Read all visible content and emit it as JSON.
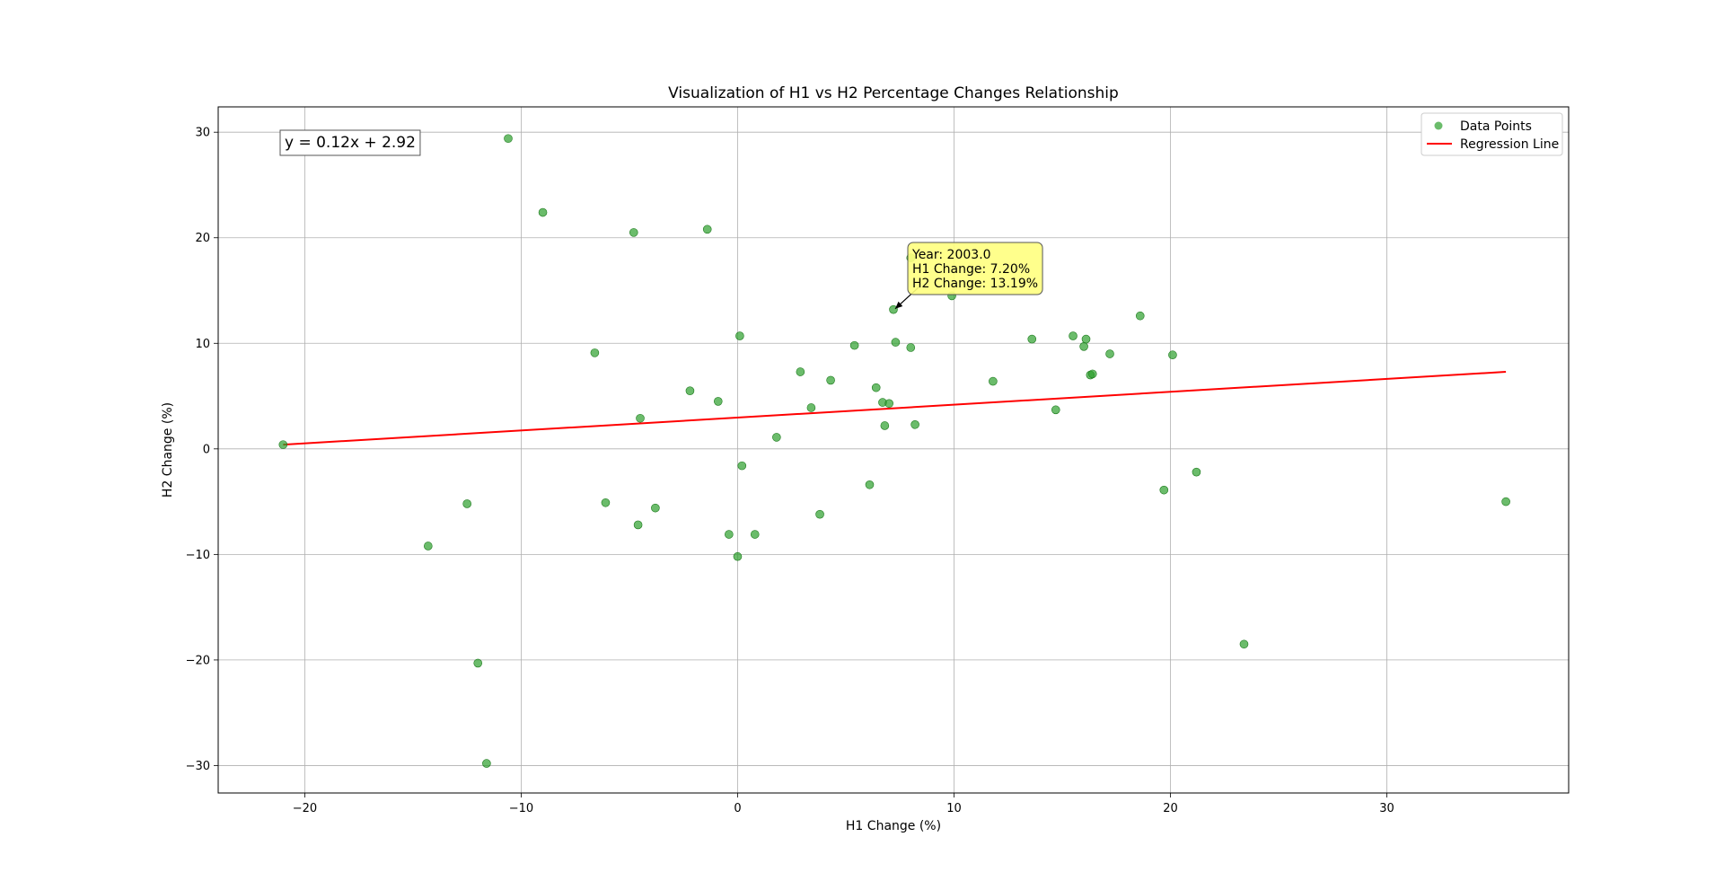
{
  "chart_data": {
    "type": "scatter",
    "title": "Visualization of H1 vs H2 Percentage Changes Relationship",
    "xlabel": "H1 Change (%)",
    "ylabel": "H2 Change (%)",
    "xlim": [
      -24.0,
      38.4
    ],
    "ylim": [
      -32.6,
      32.4
    ],
    "xticks": [
      -20,
      -10,
      0,
      10,
      20,
      30
    ],
    "yticks": [
      -30,
      -20,
      -10,
      0,
      10,
      20,
      30
    ],
    "xtick_labels": [
      "−20",
      "−10",
      "0",
      "10",
      "20",
      "30"
    ],
    "ytick_labels": [
      "−30",
      "−20",
      "−10",
      "0",
      "10",
      "20",
      "30"
    ],
    "grid": true,
    "legend_position": "top-right",
    "point_color": "#2ca02c",
    "line_color": "#ff0000",
    "series": [
      {
        "name": "Data Points",
        "kind": "scatter",
        "points": [
          [
            -21.0,
            0.4
          ],
          [
            -14.3,
            -9.2
          ],
          [
            -12.5,
            -5.2
          ],
          [
            -12.0,
            -20.3
          ],
          [
            -11.6,
            -29.8
          ],
          [
            -10.6,
            29.4
          ],
          [
            -9.0,
            22.4
          ],
          [
            -6.6,
            9.1
          ],
          [
            -6.1,
            -5.1
          ],
          [
            -4.8,
            20.5
          ],
          [
            -4.6,
            -7.2
          ],
          [
            -4.5,
            2.9
          ],
          [
            -3.8,
            -5.6
          ],
          [
            -2.2,
            5.5
          ],
          [
            -1.4,
            20.8
          ],
          [
            -0.9,
            4.5
          ],
          [
            -0.4,
            -8.1
          ],
          [
            0.0,
            -10.2
          ],
          [
            0.1,
            10.7
          ],
          [
            0.2,
            -1.6
          ],
          [
            0.8,
            -8.1
          ],
          [
            1.8,
            1.1
          ],
          [
            2.9,
            7.3
          ],
          [
            3.4,
            3.9
          ],
          [
            3.8,
            -6.2
          ],
          [
            4.3,
            6.5
          ],
          [
            5.4,
            9.8
          ],
          [
            6.1,
            -3.4
          ],
          [
            6.4,
            5.8
          ],
          [
            6.7,
            4.4
          ],
          [
            6.8,
            2.2
          ],
          [
            7.0,
            4.3
          ],
          [
            7.2,
            13.2
          ],
          [
            7.3,
            10.1
          ],
          [
            8.0,
            18.1
          ],
          [
            8.0,
            9.6
          ],
          [
            8.2,
            2.3
          ],
          [
            9.9,
            14.5
          ],
          [
            11.8,
            6.4
          ],
          [
            13.6,
            10.4
          ],
          [
            14.7,
            3.7
          ],
          [
            15.5,
            10.7
          ],
          [
            16.0,
            9.7
          ],
          [
            16.1,
            10.4
          ],
          [
            16.3,
            7.0
          ],
          [
            16.4,
            7.1
          ],
          [
            17.2,
            9.0
          ],
          [
            18.6,
            12.6
          ],
          [
            19.7,
            -3.9
          ],
          [
            20.1,
            8.9
          ],
          [
            21.2,
            -2.2
          ],
          [
            23.4,
            -18.5
          ],
          [
            35.5,
            -5.0
          ]
        ]
      },
      {
        "name": "Regression Line",
        "kind": "line",
        "points": [
          [
            -21.0,
            0.4
          ],
          [
            35.5,
            7.3
          ]
        ]
      }
    ],
    "equation": "y = 0.12x + 2.92",
    "annotation": {
      "point": [
        7.2,
        13.19
      ],
      "lines": [
        "Year: 2003.0",
        "H1 Change: 7.20%",
        "H2 Change: 13.19%"
      ],
      "box_color": "#ffff80"
    }
  }
}
